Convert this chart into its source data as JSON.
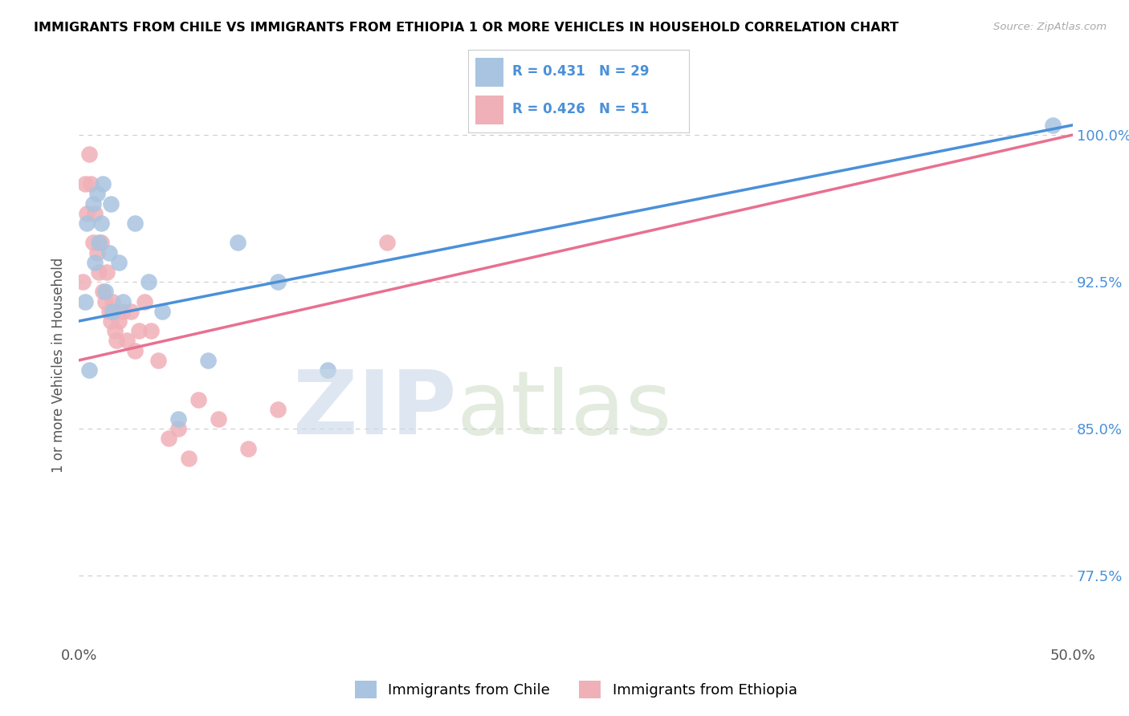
{
  "title": "IMMIGRANTS FROM CHILE VS IMMIGRANTS FROM ETHIOPIA 1 OR MORE VEHICLES IN HOUSEHOLD CORRELATION CHART",
  "source": "Source: ZipAtlas.com",
  "ylabel": "1 or more Vehicles in Household",
  "xlim": [
    0.0,
    50.0
  ],
  "ylim": [
    74.0,
    102.5
  ],
  "yticks": [
    77.5,
    85.0,
    92.5,
    100.0
  ],
  "ytick_labels": [
    "77.5%",
    "85.0%",
    "92.5%",
    "100.0%"
  ],
  "chile_color": "#a8c4e0",
  "ethiopia_color": "#f0b0b8",
  "chile_line_color": "#4a90d9",
  "ethiopia_line_color": "#e87090",
  "legend_text_color": "#4a90d9",
  "R_chile": 0.431,
  "N_chile": 29,
  "R_ethiopia": 0.426,
  "N_ethiopia": 51,
  "chile_x": [
    0.3,
    0.4,
    0.5,
    0.7,
    0.8,
    0.9,
    1.0,
    1.1,
    1.2,
    1.3,
    1.5,
    1.6,
    1.7,
    2.0,
    2.2,
    2.8,
    3.5,
    4.2,
    5.0,
    6.5,
    8.0,
    10.0,
    12.5,
    49.0
  ],
  "chile_y": [
    91.5,
    95.5,
    88.0,
    96.5,
    93.5,
    97.0,
    94.5,
    95.5,
    97.5,
    92.0,
    94.0,
    96.5,
    91.0,
    93.5,
    91.5,
    95.5,
    92.5,
    91.0,
    85.5,
    88.5,
    94.5,
    92.5,
    88.0,
    100.5
  ],
  "ethiopia_x": [
    0.2,
    0.3,
    0.4,
    0.5,
    0.6,
    0.7,
    0.8,
    0.9,
    1.0,
    1.1,
    1.2,
    1.3,
    1.4,
    1.5,
    1.6,
    1.7,
    1.8,
    1.9,
    2.0,
    2.2,
    2.4,
    2.6,
    2.8,
    3.0,
    3.3,
    3.6,
    4.0,
    4.5,
    5.0,
    5.5,
    6.0,
    7.0,
    8.5,
    10.0,
    15.5
  ],
  "ethiopia_y": [
    92.5,
    97.5,
    96.0,
    99.0,
    97.5,
    94.5,
    96.0,
    94.0,
    93.0,
    94.5,
    92.0,
    91.5,
    93.0,
    91.0,
    90.5,
    91.5,
    90.0,
    89.5,
    90.5,
    91.0,
    89.5,
    91.0,
    89.0,
    90.0,
    91.5,
    90.0,
    88.5,
    84.5,
    85.0,
    83.5,
    86.5,
    85.5,
    84.0,
    86.0,
    94.5
  ],
  "chile_line_x": [
    0.0,
    50.0
  ],
  "chile_line_y": [
    90.5,
    100.5
  ],
  "ethiopia_line_x": [
    0.0,
    50.0
  ],
  "ethiopia_line_y": [
    88.5,
    100.0
  ]
}
